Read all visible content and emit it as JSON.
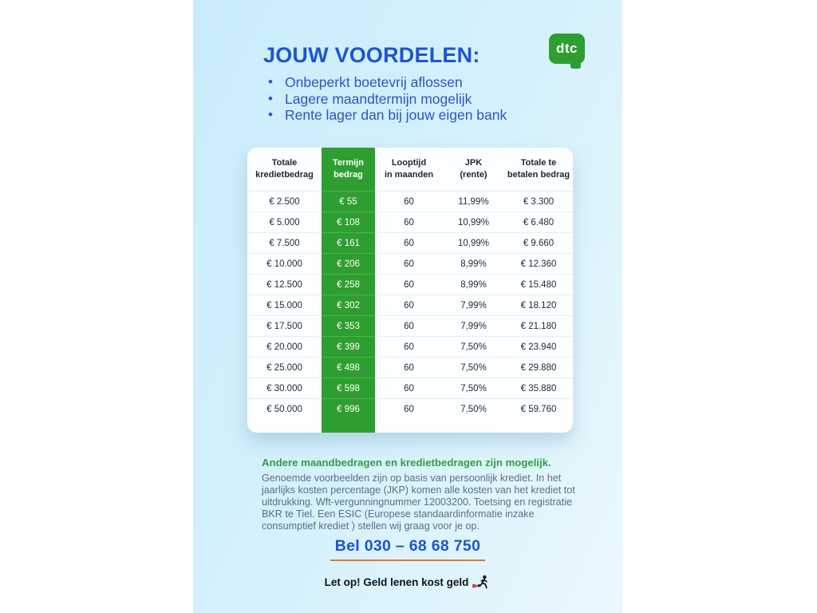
{
  "header": {
    "title": "JOUW VOORDELEN:",
    "logo_text": "dtc",
    "bullets": [
      "Onbeperkt boetevrij aflossen",
      "Lagere maandtermijn mogelijk",
      "Rente lager dan bij jouw eigen bank"
    ]
  },
  "table": {
    "columns": [
      {
        "line1": "Totale",
        "line2": "kredietbedrag"
      },
      {
        "line1": "Termijn",
        "line2": "bedrag"
      },
      {
        "line1": "Looptijd",
        "line2": "in maanden"
      },
      {
        "line1": "JPK",
        "line2": "(rente)"
      },
      {
        "line1": "Totale te",
        "line2": "betalen bedrag"
      }
    ],
    "rows": [
      [
        "€ 2.500",
        "€ 55",
        "60",
        "11,99%",
        "€ 3.300"
      ],
      [
        "€ 5.000",
        "€ 108",
        "60",
        "10,99%",
        "€ 6.480"
      ],
      [
        "€ 7.500",
        "€ 161",
        "60",
        "10,99%",
        "€ 9.660"
      ],
      [
        "€ 10.000",
        "€ 206",
        "60",
        "8,99%",
        "€ 12.360"
      ],
      [
        "€ 12.500",
        "€ 258",
        "60",
        "8,99%",
        "€ 15.480"
      ],
      [
        "€ 15.000",
        "€ 302",
        "60",
        "7,99%",
        "€ 18.120"
      ],
      [
        "€ 17.500",
        "€ 353",
        "60",
        "7,99%",
        "€ 21.180"
      ],
      [
        "€ 20.000",
        "€ 399",
        "60",
        "7,50%",
        "€ 23.940"
      ],
      [
        "€ 25.000",
        "€ 498",
        "60",
        "7,50%",
        "€ 29.880"
      ],
      [
        "€ 30.000",
        "€ 598",
        "60",
        "7,50%",
        "€ 35.880"
      ],
      [
        "€ 50.000",
        "€ 996",
        "60",
        "7,50%",
        "€ 59.760"
      ]
    ]
  },
  "footer": {
    "green_heading": "Andere maandbedragen en kredietbedragen zijn mogelijk.",
    "disclaimer": "Genoemde voorbeelden zijn op basis van persoonlijk krediet. In het jaarlijks kosten percentage (JKP) komen alle kosten van het krediet tot uitdrukking. Wft-vergunningnummer 12003200. Toetsing en registratie BKR te Tiel. Een ESIC (Europese standaardinformatie inzake consumptief krediet ) stellen wij graag voor je op.",
    "phone_cta": "Bel 030 – 68 68 750",
    "warning": "Let op! Geld lenen kost geld"
  },
  "colors": {
    "brand_blue": "#1d55d0",
    "bullet_blue": "#2a55c8",
    "brand_green": "#2f9e30",
    "heading_green": "#2f9e46",
    "underline_orange": "#e8742c",
    "panel_gradient_start": "#c9ecfa",
    "panel_gradient_end": "#eaf8fe",
    "disclaimer_gray": "#5c6f80",
    "warning_red_square": "#e03a2f"
  }
}
